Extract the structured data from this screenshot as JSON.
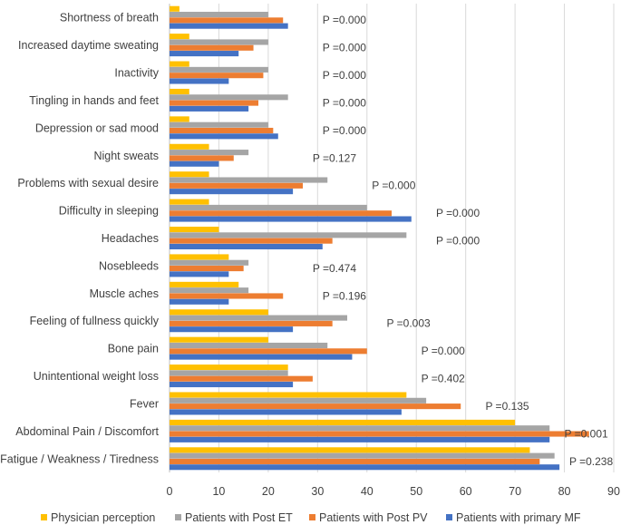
{
  "chart_data": {
    "type": "bar",
    "orientation": "horizontal",
    "categories": [
      "Shortness of breath",
      "Increased daytime sweating",
      "Inactivity",
      "Tingling in hands and feet",
      "Depression or sad mood",
      "Night sweats",
      "Problems with sexual desire",
      "Difficulty in sleeping",
      "Headaches",
      "Nosebleeds",
      "Muscle aches",
      "Feeling of fullness quickly",
      "Bone pain",
      "Unintentional weight loss",
      "Fever",
      "Abdominal Pain / Discomfort",
      "Fatigue / Weakness / Tiredness"
    ],
    "series": [
      {
        "name": "Physician perception",
        "color": "#FFC000",
        "values": [
          2,
          4,
          4,
          4,
          4,
          8,
          8,
          8,
          10,
          12,
          14,
          20,
          20,
          24,
          48,
          70,
          73
        ]
      },
      {
        "name": "Patients with Post ET",
        "color": "#A5A5A5",
        "values": [
          20,
          20,
          20,
          24,
          20,
          16,
          32,
          40,
          48,
          16,
          16,
          36,
          32,
          24,
          52,
          77,
          78
        ]
      },
      {
        "name": "Patients with Post PV",
        "color": "#ED7D31",
        "values": [
          23,
          17,
          19,
          18,
          21,
          13,
          27,
          45,
          33,
          15,
          23,
          33,
          40,
          29,
          59,
          85,
          75
        ]
      },
      {
        "name": "Patients with primary MF",
        "color": "#4472C4",
        "values": [
          24,
          14,
          12,
          16,
          22,
          10,
          25,
          49,
          31,
          12,
          12,
          25,
          37,
          25,
          47,
          77,
          79
        ]
      }
    ],
    "p_values": [
      "P =0.000",
      "P =0.000",
      "P =0.000",
      "P =0.000",
      "P =0.000",
      "P =0.127",
      "P =0.000",
      "P =0.000",
      "P =0.000",
      "P =0.474",
      "P =0.196",
      "P =0.003",
      "P =0.000",
      "P =0.402",
      "P =0.135",
      "P =0.001",
      "P =0.238"
    ],
    "p_value_x": [
      31,
      31,
      31,
      31,
      31,
      29,
      41,
      54,
      54,
      29,
      31,
      44,
      51,
      51,
      64,
      80,
      81
    ],
    "xlim": [
      0,
      90
    ],
    "xticks": [
      0,
      10,
      20,
      30,
      40,
      50,
      60,
      70,
      80,
      90
    ],
    "grid": true,
    "legend": "bottom",
    "title": "",
    "xlabel": "",
    "ylabel": ""
  }
}
